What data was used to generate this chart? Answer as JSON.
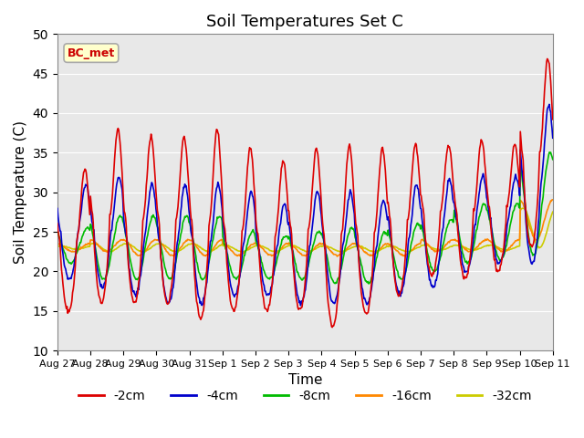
{
  "title": "Soil Temperatures Set C",
  "xlabel": "Time",
  "ylabel": "Soil Temperature (C)",
  "ylim": [
    10,
    50
  ],
  "yticks": [
    10,
    15,
    20,
    25,
    30,
    35,
    40,
    45,
    50
  ],
  "bg_color": "#e8e8e8",
  "annotation_text": "BC_met",
  "annotation_color": "#cc0000",
  "annotation_bg": "#ffffcc",
  "annotation_border": "#aaaaaa",
  "series_colors": {
    "-2cm": "#dd0000",
    "-4cm": "#0000cc",
    "-8cm": "#00bb00",
    "-16cm": "#ff8800",
    "-32cm": "#cccc00"
  },
  "legend_labels": [
    "-2cm",
    "-4cm",
    "-8cm",
    "-16cm",
    "-32cm"
  ],
  "figsize": [
    6.4,
    4.8
  ],
  "dpi": 100,
  "x_tick_labels": [
    "Aug 27",
    "Aug 28",
    "Aug 29",
    "Aug 30",
    "Aug 31",
    "Sep 1",
    "Sep 2",
    "Sep 3",
    "Sep 4",
    "Sep 5",
    "Sep 6",
    "Sep 7",
    "Sep 8",
    "Sep 9",
    "Sep 10",
    "Sep 11"
  ]
}
